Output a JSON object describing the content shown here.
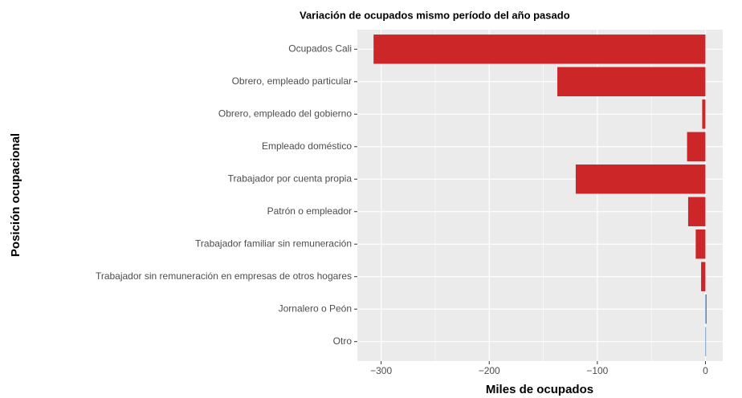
{
  "chart_data": {
    "type": "barh",
    "title": "Variación de ocupados mismo período del año pasado",
    "xlabel": "Miles de ocupados",
    "ylabel": "Posición ocupacional",
    "categories": [
      "Ocupados Cali",
      "Obrero, empleado particular",
      "Obrero, empleado del gobierno",
      "Empleado doméstico",
      "Trabajador por cuenta propia",
      "Patrón o empleador",
      "Trabajador familiar sin remuneración",
      "Trabajador sin remuneración en empresas de otros hogares",
      "Jornalero o Peón",
      "Otro"
    ],
    "values": [
      -307,
      -137,
      -3,
      -17,
      -120,
      -16,
      -9,
      -4,
      1,
      0.5
    ],
    "colors": [
      "#cc2629",
      "#cc2629",
      "#cc2629",
      "#cc2629",
      "#cc2629",
      "#cc2629",
      "#cc2629",
      "#cc2629",
      "#3b6eab",
      "#3b6eab"
    ],
    "xlim": [
      -322,
      16
    ],
    "xticks": [
      {
        "value": -300,
        "label": "−300"
      },
      {
        "value": -200,
        "label": "−200"
      },
      {
        "value": -100,
        "label": "−100"
      },
      0
    ],
    "xminor": [
      -250,
      -150,
      -50
    ],
    "grid": true
  }
}
